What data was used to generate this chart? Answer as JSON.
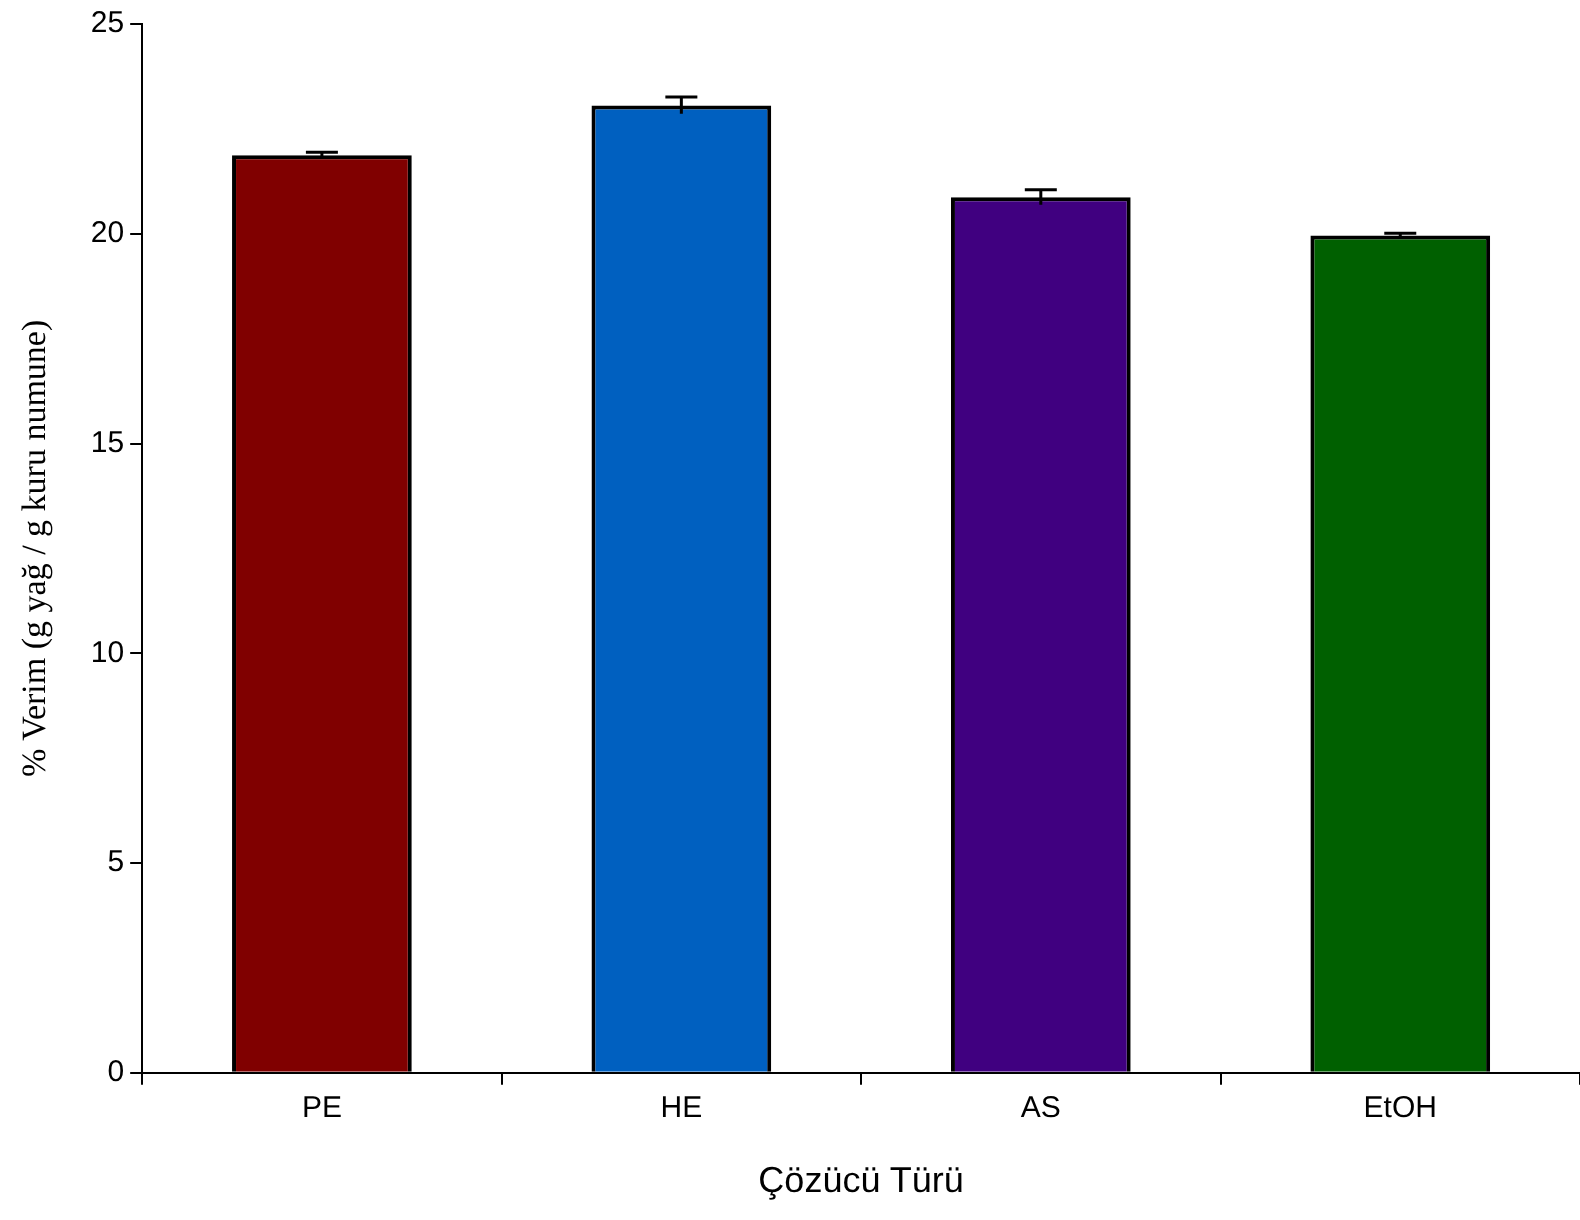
{
  "chart_data": {
    "type": "bar",
    "xlabel": "Çözücü Türü",
    "ylabel": "% Verim (g yağ / g kuru numune)",
    "categories": [
      "PE",
      "HE",
      "AS",
      "EtOH"
    ],
    "values": [
      21.87,
      23.06,
      20.87,
      19.96
    ],
    "colors": [
      "#800000",
      "#0060c0",
      "#400080",
      "#006000"
    ],
    "errors": [
      0.07,
      0.2,
      0.18,
      0.05
    ],
    "ylim": [
      0,
      25
    ],
    "yticks": [
      0,
      5,
      10,
      15,
      20,
      25
    ],
    "grid": false
  }
}
